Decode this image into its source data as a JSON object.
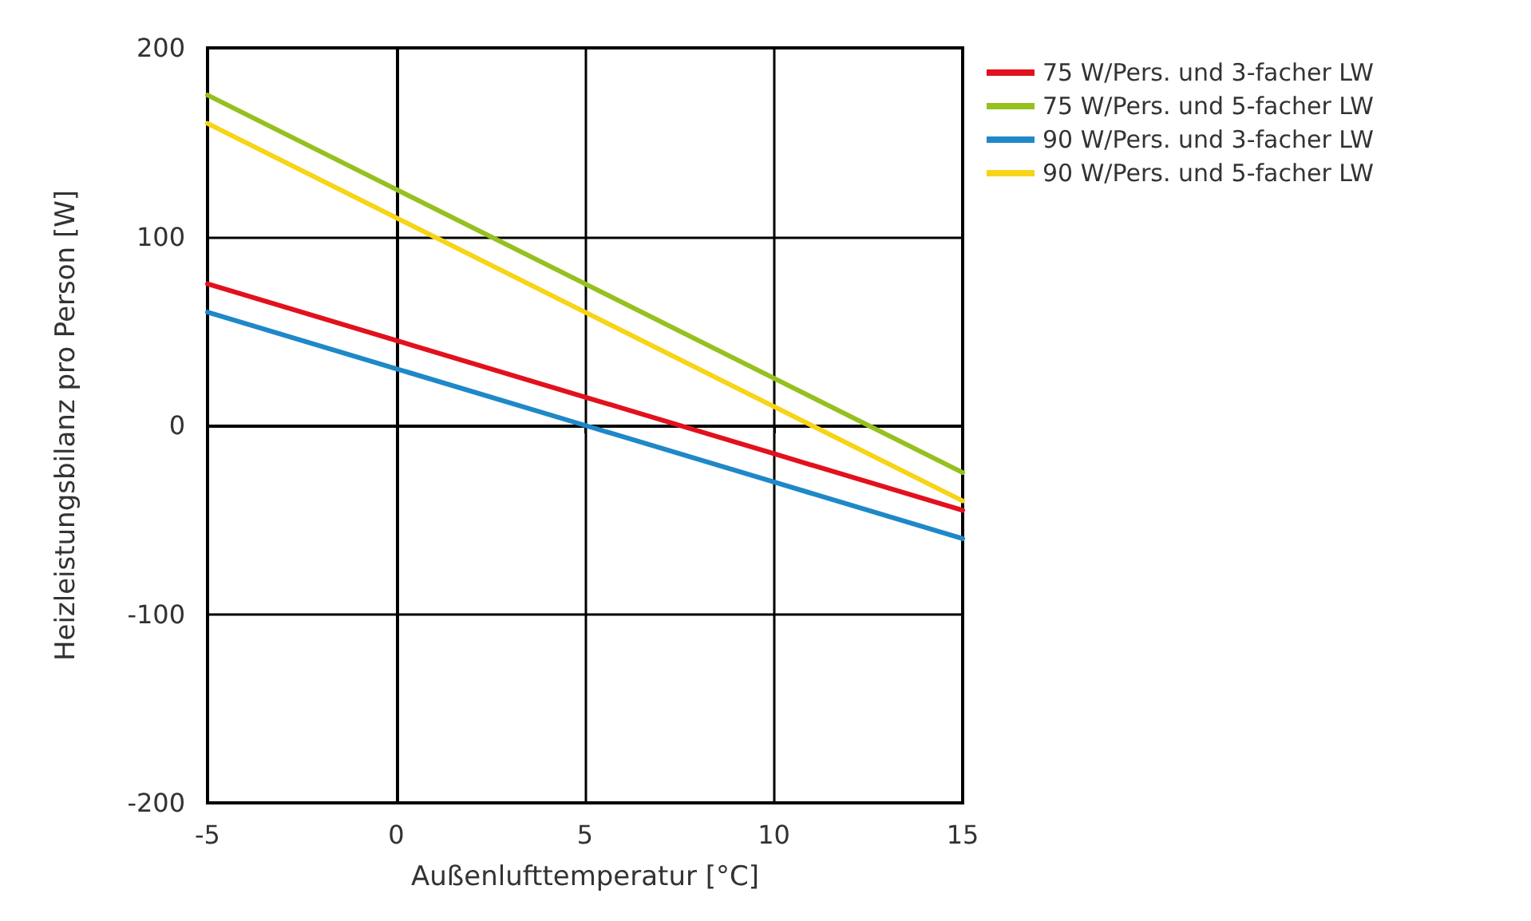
{
  "chart_data": {
    "type": "line",
    "xlabel": "Außenlufttemperatur [°C]",
    "ylabel": "Heizleistungsbilanz pro Person [W]",
    "x": [
      -5,
      0,
      5,
      10,
      15
    ],
    "series": [
      {
        "name": "75 W/Pers. und 3-facher LW",
        "color": "#e3101e",
        "values": [
          75,
          45,
          15,
          -15,
          -45
        ]
      },
      {
        "name": "75 W/Pers. und 5-facher LW",
        "color": "#95c11f",
        "values": [
          175,
          125,
          75,
          25,
          -25
        ]
      },
      {
        "name": "90 W/Pers. und 3-facher LW",
        "color": "#1f88c8",
        "values": [
          60,
          30,
          0,
          -30,
          -60
        ]
      },
      {
        "name": "90 W/Pers. und 5-facher LW",
        "color": "#f7d417",
        "values": [
          160,
          110,
          60,
          10,
          -40
        ]
      }
    ],
    "xlim": [
      -5,
      15
    ],
    "xticks": [
      -5,
      0,
      5,
      10,
      15
    ],
    "ylim": [
      -200,
      200
    ],
    "yticks": [
      -200,
      -100,
      0,
      100,
      200
    ],
    "grid": true,
    "legend": "top right",
    "marker": "none",
    "line_style": "solid"
  }
}
